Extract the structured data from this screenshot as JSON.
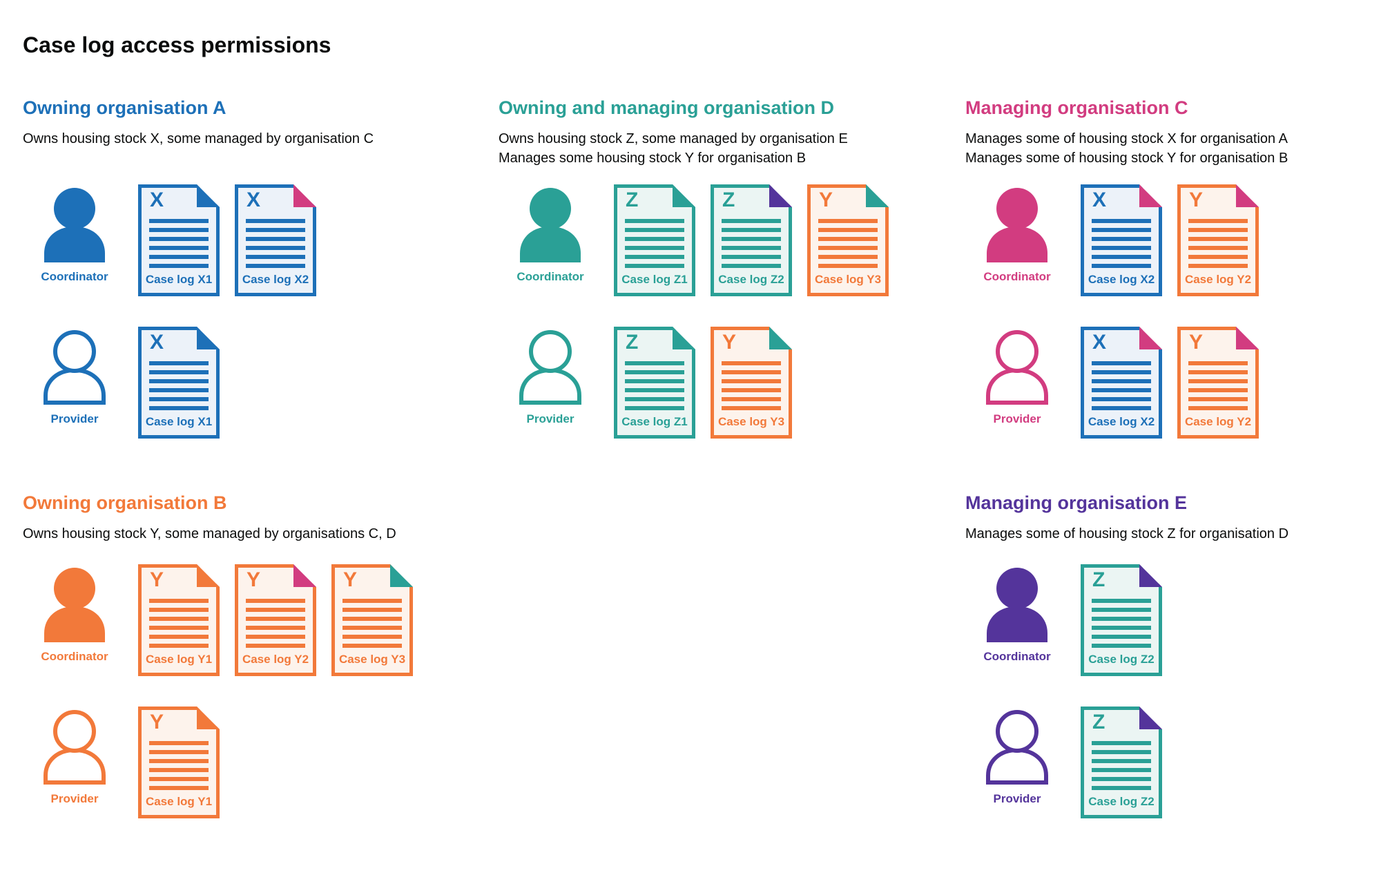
{
  "page": {
    "title": "Case log access permissions"
  },
  "roles": {
    "coordinator": "Coordinator",
    "provider": "Provider"
  },
  "colors": {
    "blue": "#1d70b8",
    "teal": "#2aa096",
    "pink": "#d23c80",
    "orange": "#f2793a",
    "purple": "#54349b",
    "blue_bg": "#ecf2f9",
    "teal_bg": "#ebf5f3",
    "orange_bg": "#fdf3ec",
    "text": "#0b0c0c"
  },
  "sections": [
    {
      "heading": "Owning organisation A",
      "color": "blue",
      "description": [
        "Owns housing stock X, some managed by organisation C"
      ],
      "rows": [
        {
          "role": "coordinator",
          "docs": [
            {
              "label": "Case log X1",
              "letter": "X",
              "color": "blue",
              "fold": "blue"
            },
            {
              "label": "Case log X2",
              "letter": "X",
              "color": "blue",
              "fold": "pink"
            }
          ]
        },
        {
          "role": "provider",
          "docs": [
            {
              "label": "Case log X1",
              "letter": "X",
              "color": "blue",
              "fold": "blue"
            }
          ]
        }
      ]
    },
    {
      "heading": "Owning and managing organisation D",
      "color": "teal",
      "description": [
        "Owns housing stock Z, some managed by organisation E",
        "Manages some housing stock Y for organisation B"
      ],
      "rows": [
        {
          "role": "coordinator",
          "docs": [
            {
              "label": "Case log Z1",
              "letter": "Z",
              "color": "teal",
              "fold": "teal"
            },
            {
              "label": "Case log Z2",
              "letter": "Z",
              "color": "teal",
              "fold": "purple"
            },
            {
              "label": "Case log Y3",
              "letter": "Y",
              "color": "orange",
              "fold": "teal"
            }
          ]
        },
        {
          "role": "provider",
          "docs": [
            {
              "label": "Case log Z1",
              "letter": "Z",
              "color": "teal",
              "fold": "teal"
            },
            {
              "label": "Case log Y3",
              "letter": "Y",
              "color": "orange",
              "fold": "teal"
            }
          ]
        }
      ]
    },
    {
      "heading": "Managing organisation C",
      "color": "pink",
      "description": [
        "Manages some of housing stock X for organisation A",
        "Manages some of housing stock Y for organisation B"
      ],
      "rows": [
        {
          "role": "coordinator",
          "docs": [
            {
              "label": "Case log X2",
              "letter": "X",
              "color": "blue",
              "fold": "pink"
            },
            {
              "label": "Case log Y2",
              "letter": "Y",
              "color": "orange",
              "fold": "pink"
            }
          ]
        },
        {
          "role": "provider",
          "docs": [
            {
              "label": "Case log X2",
              "letter": "X",
              "color": "blue",
              "fold": "pink"
            },
            {
              "label": "Case log Y2",
              "letter": "Y",
              "color": "orange",
              "fold": "pink"
            }
          ]
        }
      ]
    },
    {
      "heading": "Owning organisation B",
      "color": "orange",
      "description": [
        "Owns housing stock Y, some managed by organisations C, D"
      ],
      "rows": [
        {
          "role": "coordinator",
          "docs": [
            {
              "label": "Case log Y1",
              "letter": "Y",
              "color": "orange",
              "fold": "orange"
            },
            {
              "label": "Case log Y2",
              "letter": "Y",
              "color": "orange",
              "fold": "pink"
            },
            {
              "label": "Case log Y3",
              "letter": "Y",
              "color": "orange",
              "fold": "teal"
            }
          ]
        },
        {
          "role": "provider",
          "docs": [
            {
              "label": "Case log Y1",
              "letter": "Y",
              "color": "orange",
              "fold": "orange"
            }
          ]
        }
      ]
    },
    {
      "heading": "Managing organisation E",
      "color": "purple",
      "description": [
        "Manages some of housing stock Z for organisation D"
      ],
      "rows": [
        {
          "role": "coordinator",
          "docs": [
            {
              "label": "Case log Z2",
              "letter": "Z",
              "color": "teal",
              "fold": "purple"
            }
          ]
        },
        {
          "role": "provider",
          "docs": [
            {
              "label": "Case log Z2",
              "letter": "Z",
              "color": "teal",
              "fold": "purple"
            }
          ]
        }
      ]
    }
  ]
}
